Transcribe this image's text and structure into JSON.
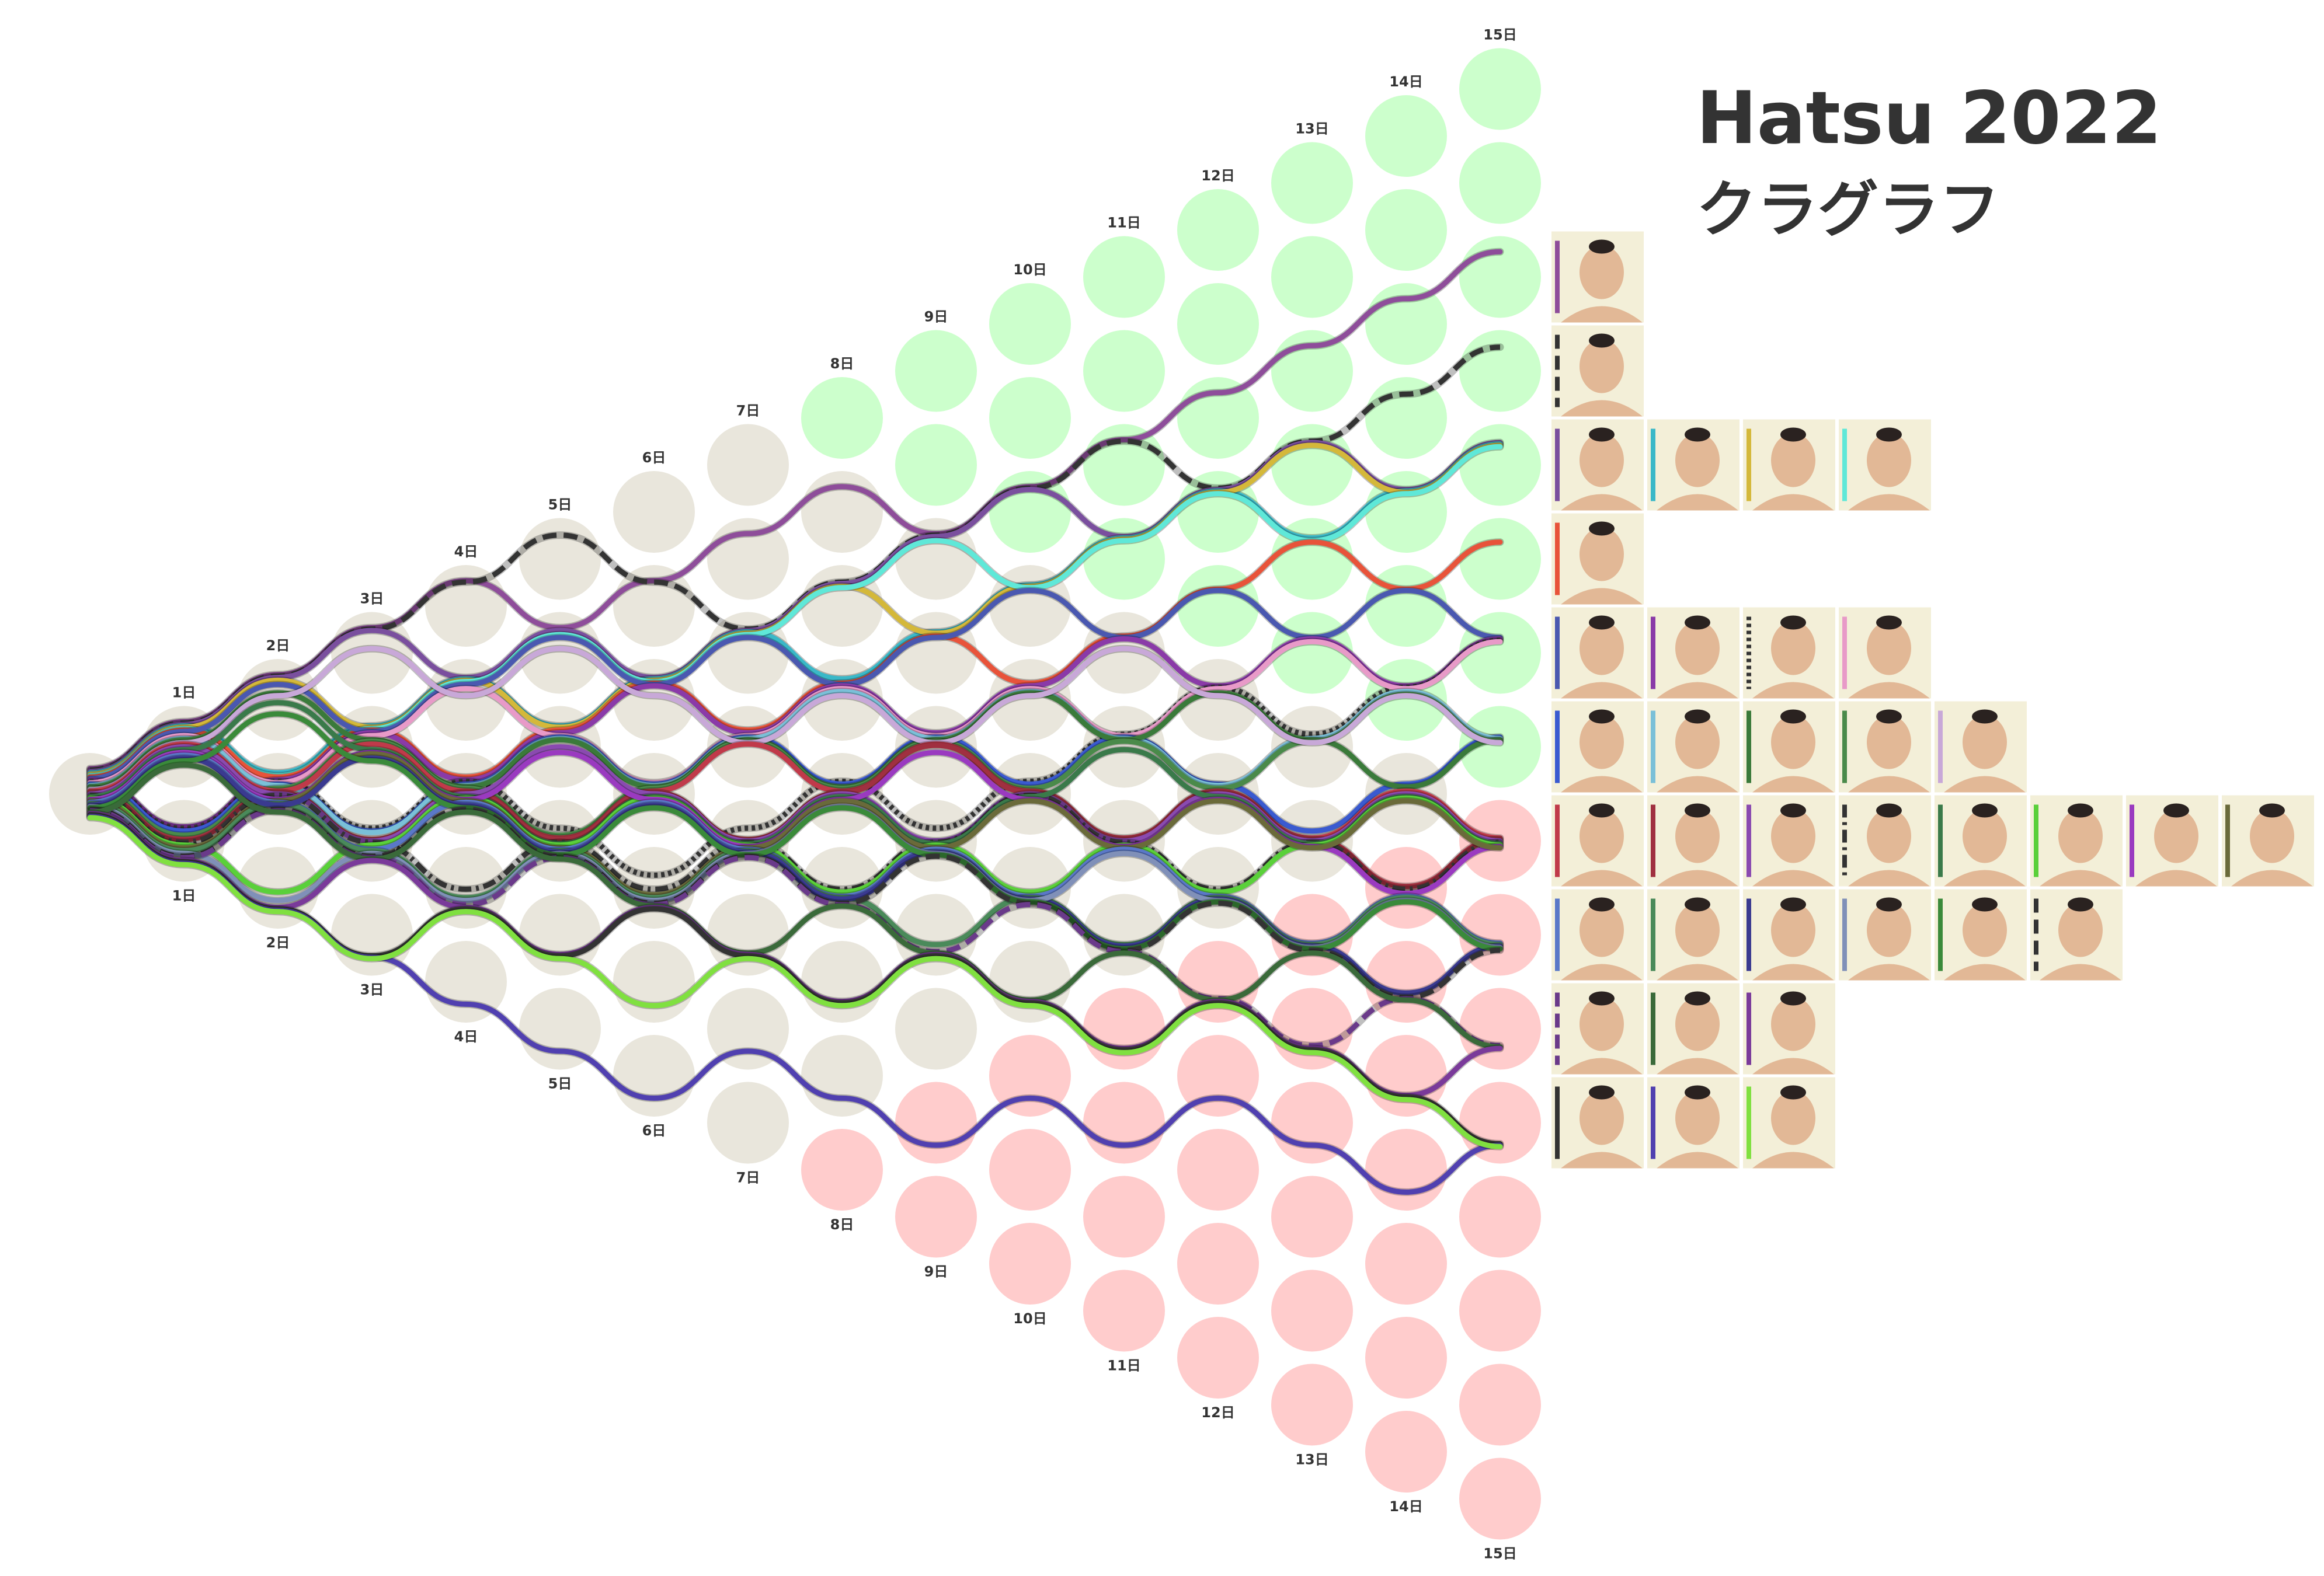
{
  "chart_data": {
    "type": "kuragraph",
    "title": "Hatsu 2022",
    "subtitle": "クラグラフ",
    "day_labels": [
      "1日",
      "2日",
      "3日",
      "4日",
      "5日",
      "6日",
      "7日",
      "8日",
      "9日",
      "10日",
      "11日",
      "12日",
      "13日",
      "14日",
      "15日"
    ],
    "win_color": "#ccffcc",
    "loss_color": "#ffcccc",
    "neutral_color": "#e9e6dc",
    "series": [
      {
        "color": "#8e4d9a",
        "dash": "solid",
        "results": [
          1,
          1,
          1,
          1,
          0,
          1,
          1,
          1,
          0,
          1,
          1,
          1,
          1,
          1,
          1
        ]
      },
      {
        "color": "#333333",
        "dash": "dashed",
        "results": [
          1,
          1,
          1,
          1,
          1,
          0,
          0,
          1,
          1,
          1,
          1,
          0,
          1,
          1,
          1
        ]
      },
      {
        "color": "#7a4f9e",
        "dash": "solid",
        "results": [
          1,
          1,
          1,
          0,
          1,
          0,
          1,
          1,
          1,
          1,
          0,
          1,
          1,
          0,
          1
        ]
      },
      {
        "color": "#3ab8c8",
        "dash": "solid",
        "results": [
          1,
          0,
          1,
          1,
          0,
          1,
          1,
          0,
          1,
          1,
          1,
          1,
          0,
          1,
          1
        ]
      },
      {
        "color": "#d4b83a",
        "dash": "solid",
        "results": [
          1,
          1,
          0,
          1,
          0,
          1,
          1,
          1,
          0,
          1,
          1,
          1,
          1,
          0,
          1
        ]
      },
      {
        "color": "#5fe8d8",
        "dash": "solid",
        "results": [
          1,
          0,
          1,
          1,
          1,
          0,
          1,
          1,
          1,
          0,
          1,
          1,
          0,
          1,
          1
        ]
      },
      {
        "color": "#e8533a",
        "dash": "solid",
        "results": [
          1,
          0,
          1,
          0,
          1,
          1,
          0,
          1,
          1,
          0,
          1,
          1,
          1,
          0,
          1
        ]
      },
      {
        "color": "#4a58b0",
        "dash": "solid",
        "results": [
          1,
          1,
          0,
          1,
          1,
          0,
          1,
          0,
          1,
          1,
          0,
          1,
          0,
          1,
          0
        ]
      },
      {
        "color": "#8a3aa8",
        "dash": "solid",
        "results": [
          0,
          1,
          1,
          0,
          1,
          1,
          0,
          1,
          0,
          1,
          1,
          0,
          1,
          0,
          1
        ]
      },
      {
        "color": "#333333",
        "dash": "dotted",
        "results": [
          0,
          1,
          0,
          1,
          0,
          0,
          1,
          1,
          0,
          1,
          1,
          1,
          0,
          1,
          1
        ]
      },
      {
        "color": "#e89ac8",
        "dash": "solid",
        "results": [
          1,
          0,
          1,
          1,
          0,
          0,
          1,
          1,
          0,
          1,
          0,
          1,
          1,
          0,
          1
        ]
      },
      {
        "color": "#3a5ad0",
        "dash": "solid",
        "results": [
          0,
          1,
          0,
          1,
          1,
          0,
          1,
          0,
          1,
          0,
          1,
          0,
          0,
          1,
          1
        ]
      },
      {
        "color": "#7ac0d8",
        "dash": "solid",
        "results": [
          1,
          0,
          0,
          1,
          1,
          0,
          1,
          1,
          0,
          1,
          0,
          0,
          1,
          1,
          0
        ]
      },
      {
        "color": "#3a7a3a",
        "dash": "solid",
        "results": [
          1,
          1,
          0,
          0,
          1,
          0,
          1,
          0,
          1,
          1,
          0,
          1,
          0,
          0,
          1
        ]
      },
      {
        "color": "#4a8a4a",
        "dash": "solid",
        "results": [
          0,
          1,
          1,
          0,
          0,
          1,
          1,
          0,
          1,
          0,
          1,
          0,
          1,
          1,
          0
        ]
      },
      {
        "color": "#c8a8d8",
        "dash": "solid",
        "results": [
          1,
          1,
          1,
          0,
          1,
          0,
          0,
          1,
          0,
          1,
          1,
          0,
          0,
          1,
          0
        ]
      },
      {
        "color": "#c03a4a",
        "dash": "solid",
        "results": [
          1,
          0,
          1,
          0,
          0,
          1,
          1,
          0,
          1,
          0,
          0,
          1,
          0,
          1,
          0
        ]
      },
      {
        "color": "#a03040",
        "dash": "solid",
        "results": [
          0,
          1,
          0,
          1,
          0,
          1,
          0,
          1,
          1,
          0,
          0,
          1,
          0,
          0,
          1
        ]
      },
      {
        "color": "#8a4ab0",
        "dash": "solid",
        "results": [
          1,
          0,
          0,
          1,
          1,
          0,
          0,
          1,
          0,
          1,
          0,
          1,
          0,
          1,
          0
        ]
      },
      {
        "color": "#333333",
        "dash": "dashdot",
        "results": [
          0,
          1,
          0,
          0,
          1,
          0,
          1,
          0,
          1,
          1,
          0,
          0,
          1,
          0,
          1
        ]
      },
      {
        "color": "#3a7a4a",
        "dash": "solid",
        "results": [
          1,
          1,
          0,
          0,
          0,
          1,
          0,
          1,
          0,
          1,
          1,
          0,
          0,
          1,
          0
        ]
      },
      {
        "color": "#5ad03a",
        "dash": "solid",
        "results": [
          0,
          0,
          1,
          1,
          0,
          1,
          0,
          0,
          1,
          0,
          1,
          0,
          1,
          1,
          0
        ]
      },
      {
        "color": "#9a3ac0",
        "dash": "solid",
        "results": [
          1,
          0,
          1,
          0,
          1,
          0,
          0,
          1,
          1,
          0,
          0,
          1,
          0,
          0,
          1
        ]
      },
      {
        "color": "#6a6a3a",
        "dash": "solid",
        "results": [
          0,
          1,
          1,
          0,
          0,
          0,
          1,
          1,
          0,
          1,
          0,
          1,
          0,
          1,
          0
        ]
      },
      {
        "color": "#5a78c8",
        "dash": "solid",
        "results": [
          1,
          0,
          0,
          1,
          0,
          1,
          0,
          0,
          1,
          0,
          1,
          0,
          0,
          1,
          0
        ]
      },
      {
        "color": "#4a8a5a",
        "dash": "solid",
        "results": [
          0,
          1,
          0,
          0,
          1,
          0,
          1,
          0,
          0,
          1,
          0,
          1,
          0,
          1,
          0
        ]
      },
      {
        "color": "#3a3a90",
        "dash": "solid",
        "results": [
          1,
          0,
          1,
          0,
          0,
          1,
          0,
          0,
          1,
          0,
          0,
          1,
          0,
          0,
          1
        ]
      },
      {
        "color": "#8090b8",
        "dash": "solid",
        "results": [
          0,
          0,
          1,
          0,
          1,
          0,
          1,
          1,
          0,
          0,
          1,
          0,
          0,
          1,
          0
        ]
      },
      {
        "color": "#3a8a3a",
        "dash": "solid",
        "results": [
          1,
          1,
          0,
          0,
          0,
          1,
          0,
          1,
          0,
          0,
          0,
          1,
          0,
          1,
          0
        ]
      },
      {
        "color": "#333333",
        "dash": "dashed",
        "results": [
          0,
          1,
          0,
          1,
          0,
          0,
          1,
          0,
          1,
          0,
          0,
          1,
          0,
          0,
          1
        ]
      },
      {
        "color": "#6a3a8a",
        "dash": "dashed",
        "results": [
          0,
          1,
          0,
          0,
          1,
          0,
          1,
          0,
          0,
          1,
          0,
          0,
          0,
          1,
          0
        ]
      },
      {
        "color": "#3a6a3a",
        "dash": "solid",
        "results": [
          1,
          0,
          0,
          1,
          0,
          0,
          0,
          1,
          0,
          0,
          1,
          0,
          1,
          0,
          0
        ]
      },
      {
        "color": "#7a3a9a",
        "dash": "solid",
        "results": [
          0,
          0,
          1,
          0,
          0,
          1,
          0,
          0,
          1,
          0,
          0,
          1,
          0,
          0,
          1
        ]
      },
      {
        "color": "#333333",
        "dash": "solid",
        "results": [
          0,
          0,
          0,
          1,
          0,
          1,
          0,
          0,
          1,
          0,
          0,
          1,
          0,
          0,
          0
        ]
      },
      {
        "color": "#5040b0",
        "dash": "solid",
        "results": [
          0,
          0,
          0,
          0,
          0,
          0,
          1,
          0,
          0,
          1,
          0,
          1,
          0,
          0,
          1
        ]
      },
      {
        "color": "#80e040",
        "dash": "solid",
        "results": [
          0,
          0,
          0,
          1,
          0,
          0,
          1,
          0,
          1,
          0,
          0,
          1,
          0,
          0,
          0
        ]
      }
    ]
  }
}
